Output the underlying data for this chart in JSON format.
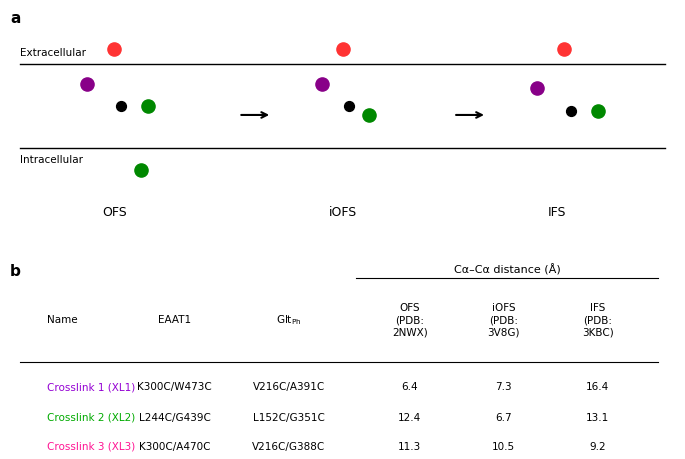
{
  "panel_a_label": "a",
  "panel_b_label": "b",
  "panel_a_structures": [
    "OFS",
    "iOFS",
    "IFS"
  ],
  "extracellular_label": "Extracellular",
  "intracellular_label": "Intracellular",
  "table_col_span_label": "Cα–Cα distance (Å)",
  "rows": [
    {
      "name": "Crosslink 1 (XL1)",
      "color": "#9400D3",
      "eaat1": "K300C/W473C",
      "glt": "V216C/A391C",
      "ofs": "6.4",
      "iofs": "7.3",
      "ifs": "16.4"
    },
    {
      "name": "Crosslink 2 (XL2)",
      "color": "#00AA00",
      "eaat1": "L244C/G439C",
      "glt": "L152C/G351C",
      "ofs": "12.4",
      "iofs": "6.7",
      "ifs": "13.1"
    },
    {
      "name": "Crosslink 3 (XL3)",
      "color": "#FF1493",
      "eaat1": "K300C/A470C",
      "glt": "V216C/G388C",
      "ofs": "11.3",
      "iofs": "10.5",
      "ifs": "9.2"
    }
  ],
  "fig_width": 6.85,
  "fig_height": 4.59,
  "dpi": 100
}
